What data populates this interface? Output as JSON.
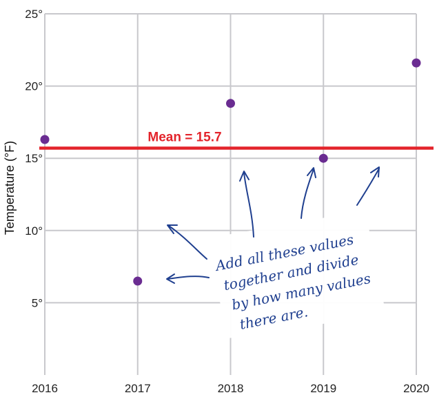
{
  "chart_data": {
    "type": "scatter",
    "title": "",
    "xlabel": "",
    "ylabel": "Temperature (°F)",
    "x": [
      2016,
      2017,
      2018,
      2019,
      2020
    ],
    "y": [
      16.3,
      6.5,
      18.8,
      15.0,
      21.6
    ],
    "x_tick_labels": [
      "2016",
      "2017",
      "2018",
      "2019",
      "2020"
    ],
    "y_ticks": [
      5,
      10,
      15,
      20,
      25
    ],
    "y_tick_labels": [
      "5°",
      "10°",
      "15°",
      "20°",
      "25°"
    ],
    "ylim": [
      0,
      25
    ],
    "xlim": [
      2016,
      2020
    ],
    "grid": true,
    "mean": {
      "value": 15.7,
      "label": "Mean = 15.7"
    },
    "annotation": {
      "lines": [
        "Add all these values",
        "together and divide",
        "by how many values",
        "there are."
      ]
    },
    "colors": {
      "points": "#6a2c91",
      "mean_line": "#e3242b",
      "grid": "#c8c8cc",
      "annotation": "#1f3f8f"
    }
  }
}
